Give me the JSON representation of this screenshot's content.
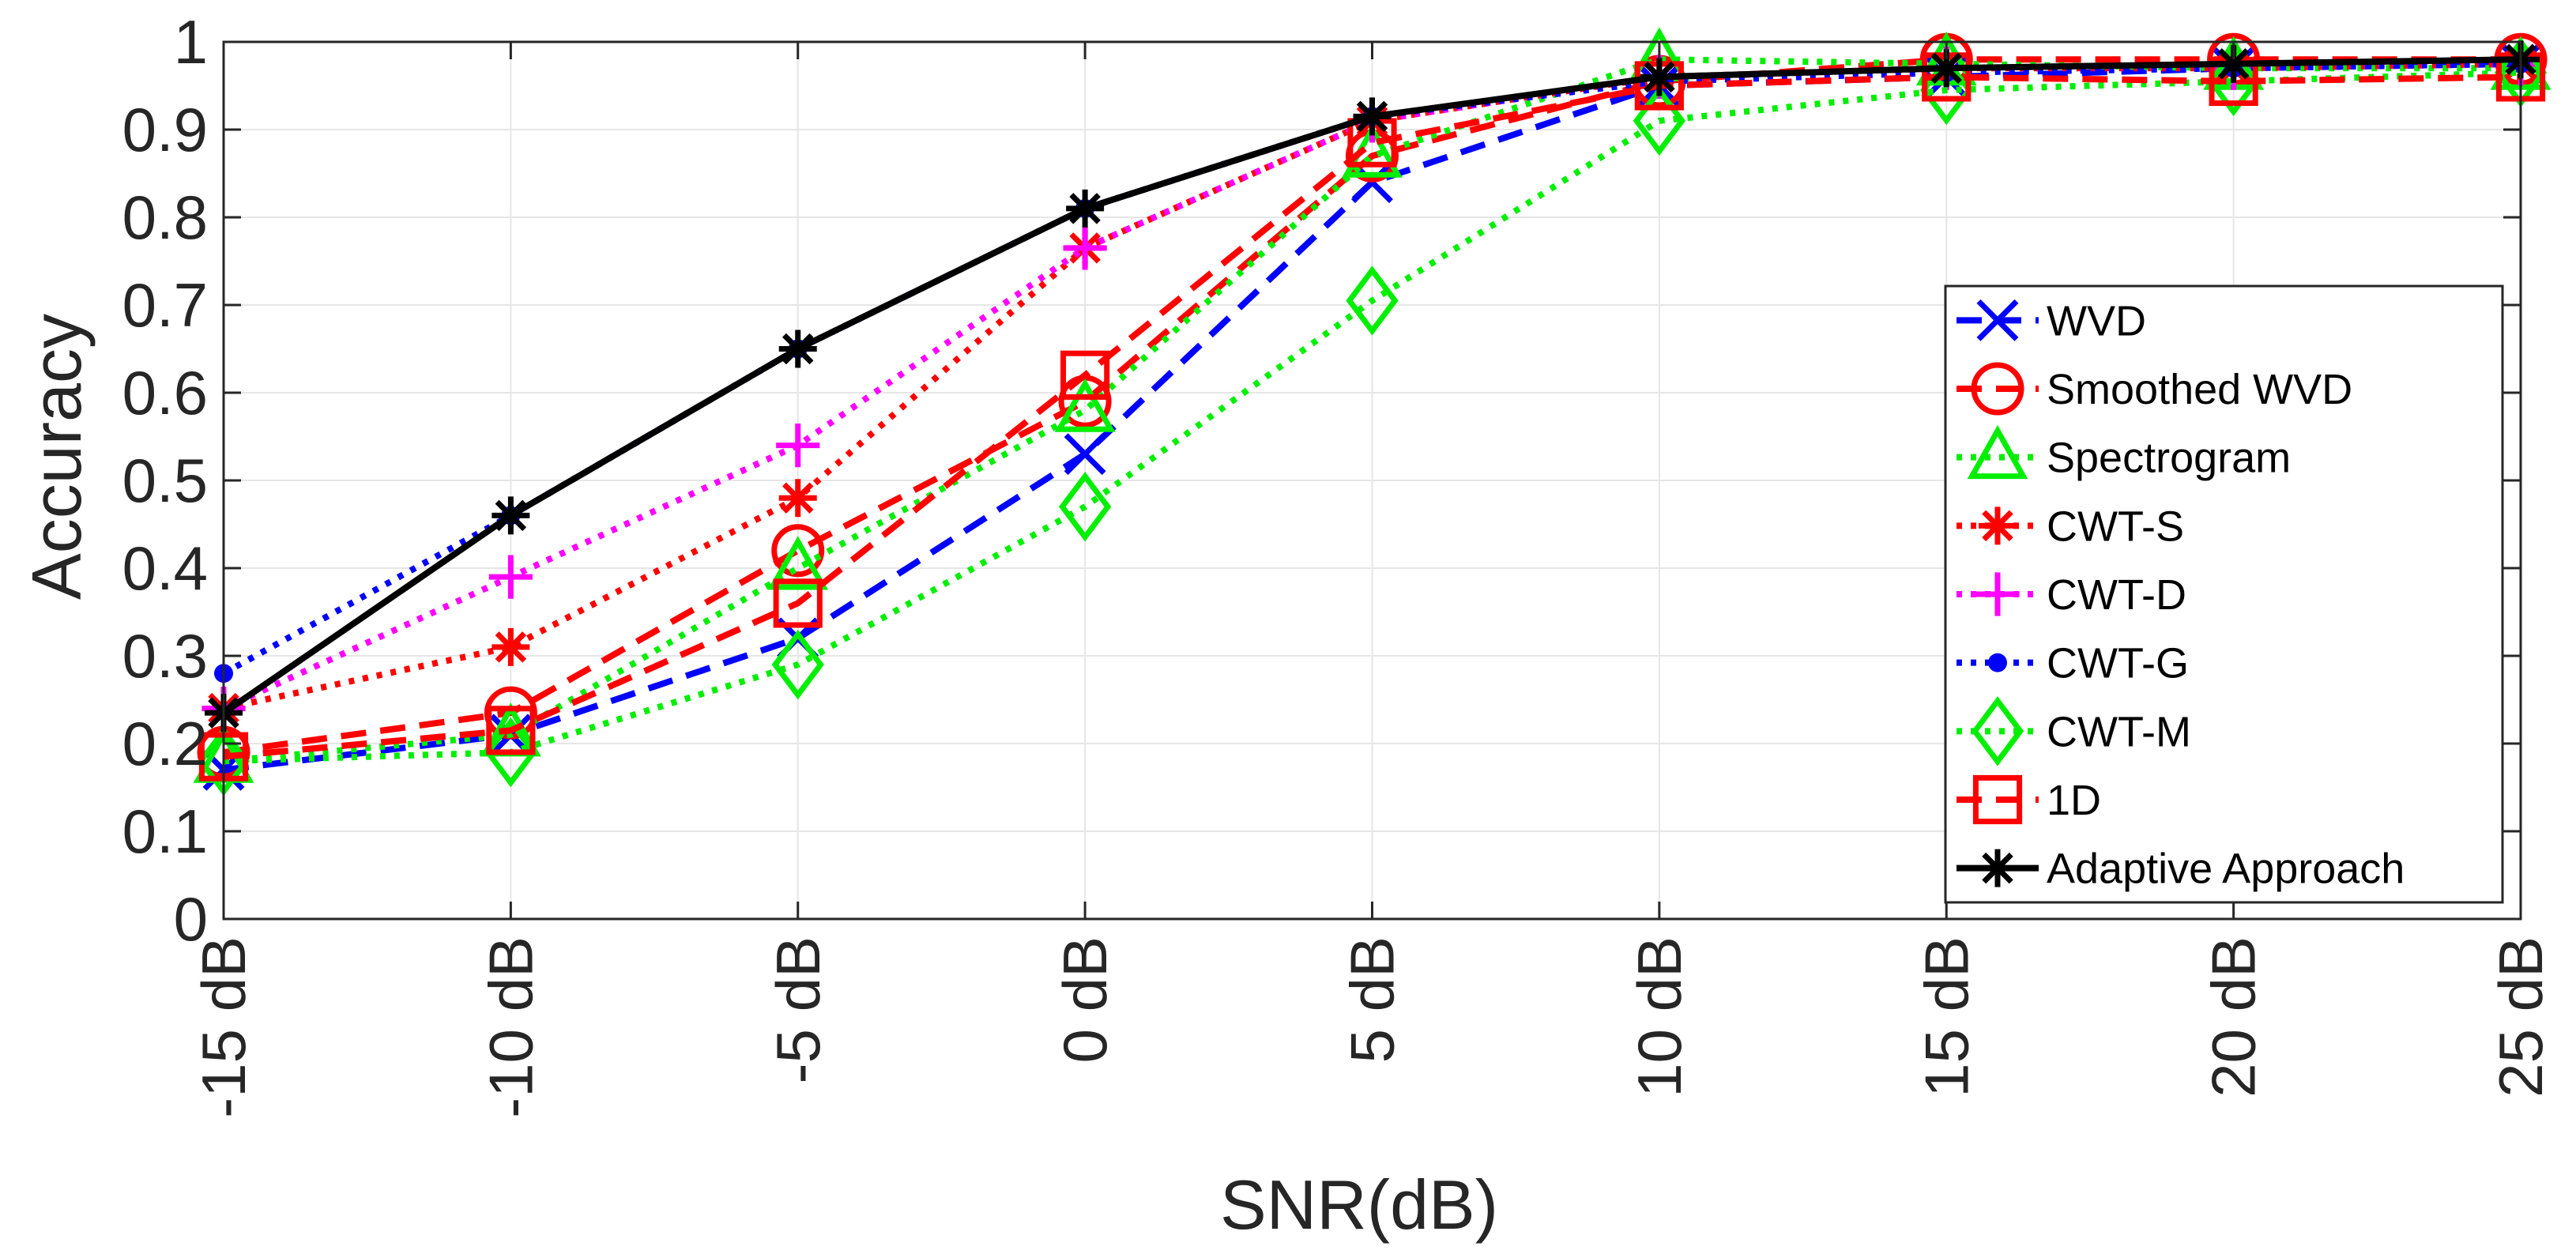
{
  "chart_data": {
    "type": "line",
    "title": "",
    "xlabel": "SNR(dB)",
    "ylabel": "Accuracy",
    "categories": [
      "-15 dB",
      "-10 dB",
      "-5 dB",
      "0 dB",
      "5 dB",
      "10 dB",
      "15 dB",
      "20 dB",
      "25 dB"
    ],
    "ylim": [
      0,
      1
    ],
    "yticks": [
      "0",
      "0.1",
      "0.2",
      "0.3",
      "0.4",
      "0.5",
      "0.6",
      "0.7",
      "0.8",
      "0.9",
      "1"
    ],
    "grid": true,
    "legend_position": "right",
    "series": [
      {
        "name": "WVD",
        "color": "#0000ff",
        "dash": "dashed",
        "marker": "x",
        "values": [
          0.17,
          0.21,
          0.32,
          0.53,
          0.84,
          0.95,
          0.96,
          0.97,
          0.975
        ]
      },
      {
        "name": "Smoothed WVD",
        "color": "#ff0000",
        "dash": "dashed",
        "marker": "circle",
        "values": [
          0.19,
          0.235,
          0.42,
          0.59,
          0.87,
          0.955,
          0.98,
          0.98,
          0.98
        ]
      },
      {
        "name": "Spectrogram",
        "color": "#00ee00",
        "dash": "dotted",
        "marker": "triangle",
        "values": [
          0.18,
          0.21,
          0.4,
          0.58,
          0.87,
          0.98,
          0.975,
          0.97,
          0.97
        ]
      },
      {
        "name": "CWT-S",
        "color": "#ff0000",
        "dash": "dotted",
        "marker": "asterisk",
        "values": [
          0.24,
          0.31,
          0.48,
          0.765,
          0.91,
          0.96,
          0.97,
          0.97,
          0.975
        ]
      },
      {
        "name": "CWT-D",
        "color": "#ff00ff",
        "dash": "dotted",
        "marker": "plus",
        "values": [
          0.24,
          0.39,
          0.54,
          0.765,
          0.91,
          0.96,
          0.97,
          0.97,
          0.975
        ]
      },
      {
        "name": "CWT-G",
        "color": "#0000ff",
        "dash": "dotted",
        "marker": "dot",
        "values": [
          0.28,
          0.46,
          0.65,
          0.81,
          0.915,
          0.955,
          0.965,
          0.97,
          0.975
        ]
      },
      {
        "name": "CWT-M",
        "color": "#00ee00",
        "dash": "dotted",
        "marker": "diamond",
        "values": [
          0.18,
          0.19,
          0.29,
          0.47,
          0.705,
          0.91,
          0.945,
          0.955,
          0.965
        ]
      },
      {
        "name": "1D",
        "color": "#ff0000",
        "dash": "dashed",
        "marker": "square",
        "values": [
          0.185,
          0.215,
          0.36,
          0.62,
          0.885,
          0.95,
          0.96,
          0.955,
          0.96
        ]
      },
      {
        "name": "Adaptive Approach",
        "color": "#000000",
        "dash": "solid",
        "marker": "asterisk",
        "values": [
          0.235,
          0.46,
          0.65,
          0.81,
          0.915,
          0.96,
          0.97,
          0.975,
          0.98
        ]
      }
    ]
  }
}
